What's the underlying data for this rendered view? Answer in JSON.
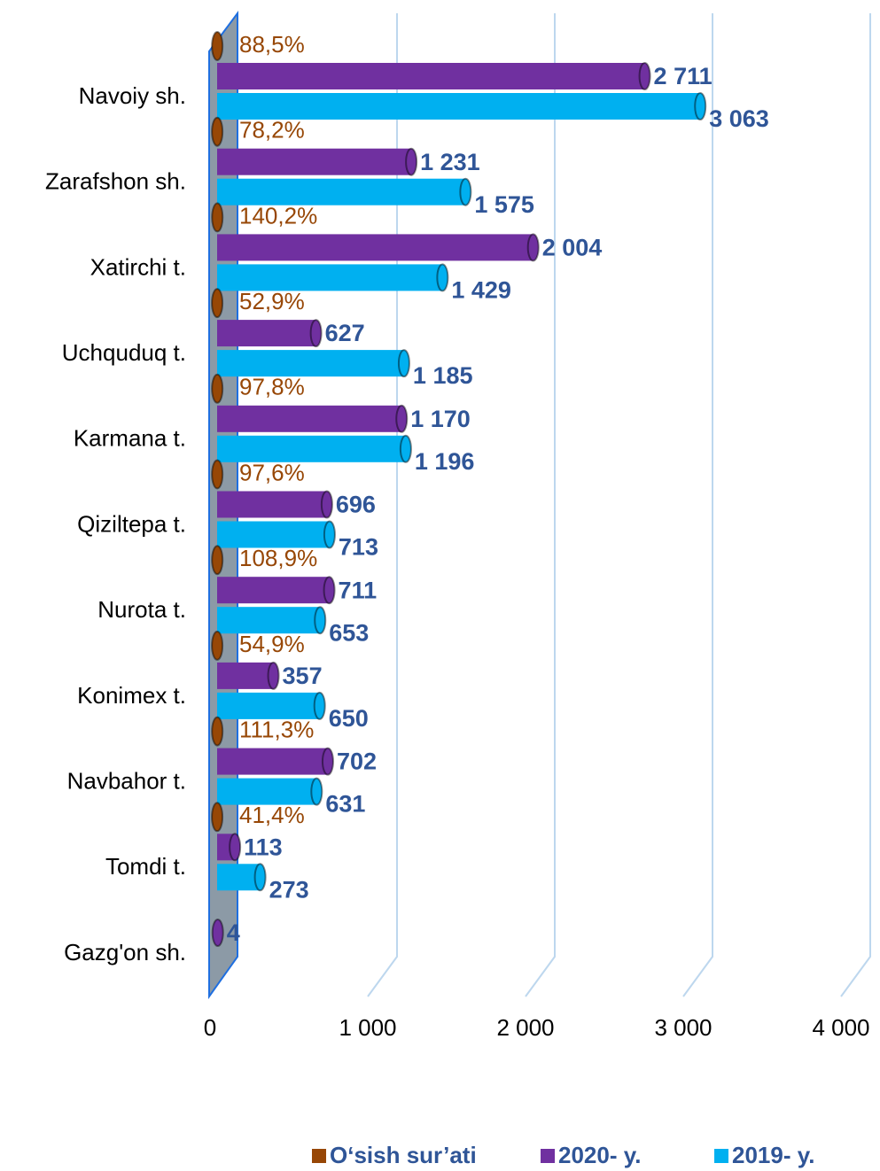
{
  "chart_data": {
    "type": "bar",
    "categories": [
      "Navoiy sh.",
      "Zarafshon sh.",
      "Xatirchi t.",
      "Uchquduq t.",
      "Karmana t.",
      "Qiziltepa t.",
      "Nurota t.",
      "Konimex t.",
      "Navbahor t.",
      "Tomdi t.",
      "Gazg'on sh."
    ],
    "series": [
      {
        "name": "O‘sish sur’ati",
        "color": "#974706",
        "values": [
          0.885,
          0.782,
          1.402,
          0.529,
          0.978,
          0.976,
          1.089,
          0.549,
          1.113,
          0.414,
          null
        ],
        "value_labels": [
          "88,5%",
          "78,2%",
          "140,2%",
          "52,9%",
          "97,8%",
          "97,6%",
          "108,9%",
          "54,9%",
          "111,3%",
          "41,4%",
          null
        ]
      },
      {
        "name": "2020- y.",
        "color": "#7030a0",
        "values": [
          2711,
          1231,
          2004,
          627,
          1170,
          696,
          711,
          357,
          702,
          113,
          4
        ],
        "value_labels": [
          "2 711",
          "1 231",
          "2 004",
          "627",
          "1 170",
          "696",
          "711",
          "357",
          "702",
          "113",
          "4"
        ]
      },
      {
        "name": "2019- y.",
        "color": "#00b0f0",
        "values": [
          3063,
          1575,
          1429,
          1185,
          1196,
          713,
          653,
          650,
          631,
          273,
          null
        ],
        "value_labels": [
          "3 063",
          "1 575",
          "1 429",
          "1 185",
          "1 196",
          "713",
          "653",
          "650",
          "631",
          "273",
          null
        ]
      }
    ],
    "xlim": [
      0,
      4000
    ],
    "xticks": [
      0,
      {
        "value": 1000,
        "label": "1 000"
      },
      {
        "value": 2000,
        "label": "2 000"
      },
      {
        "value": 3000,
        "label": "3 000"
      },
      {
        "value": 4000,
        "label": "4 000"
      }
    ],
    "grid": true,
    "legend": "bottom"
  }
}
